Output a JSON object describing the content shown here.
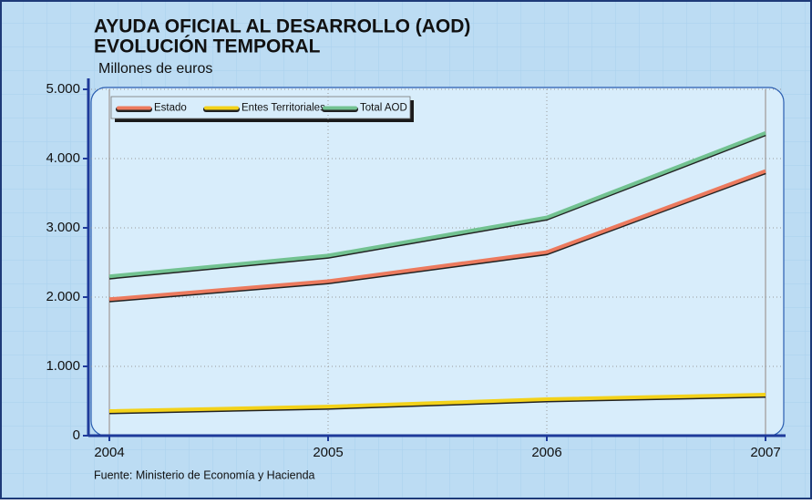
{
  "chart_data": {
    "type": "line",
    "title": "AYUDA OFICIAL AL DESARROLLO (AOD)",
    "subtitle": "EVOLUCIÓN TEMPORAL",
    "y_label": "Millones de euros",
    "source": "Fuente: Ministerio de Economía y Hacienda",
    "categories": [
      "2004",
      "2005",
      "2006",
      "2007"
    ],
    "series": [
      {
        "name": "Estado",
        "color": "#ec7a5e",
        "values": [
          1970,
          2230,
          2650,
          3820
        ]
      },
      {
        "name": "Entes Territoriales",
        "color": "#f3d21a",
        "values": [
          355,
          420,
          526,
          592
        ]
      },
      {
        "name": "Total AOD",
        "color": "#72c291",
        "values": [
          2300,
          2600,
          3150,
          4370
        ]
      }
    ],
    "ylim": [
      0,
      5000
    ],
    "yticks": [
      0,
      {
        "value": 1000,
        "label": "1.000"
      },
      {
        "value": 2000,
        "label": "2.000"
      },
      {
        "value": 3000,
        "label": "3.000"
      },
      {
        "value": 4000,
        "label": "4.000"
      },
      {
        "value": 5000,
        "label": "5.000"
      }
    ],
    "grid": true
  }
}
